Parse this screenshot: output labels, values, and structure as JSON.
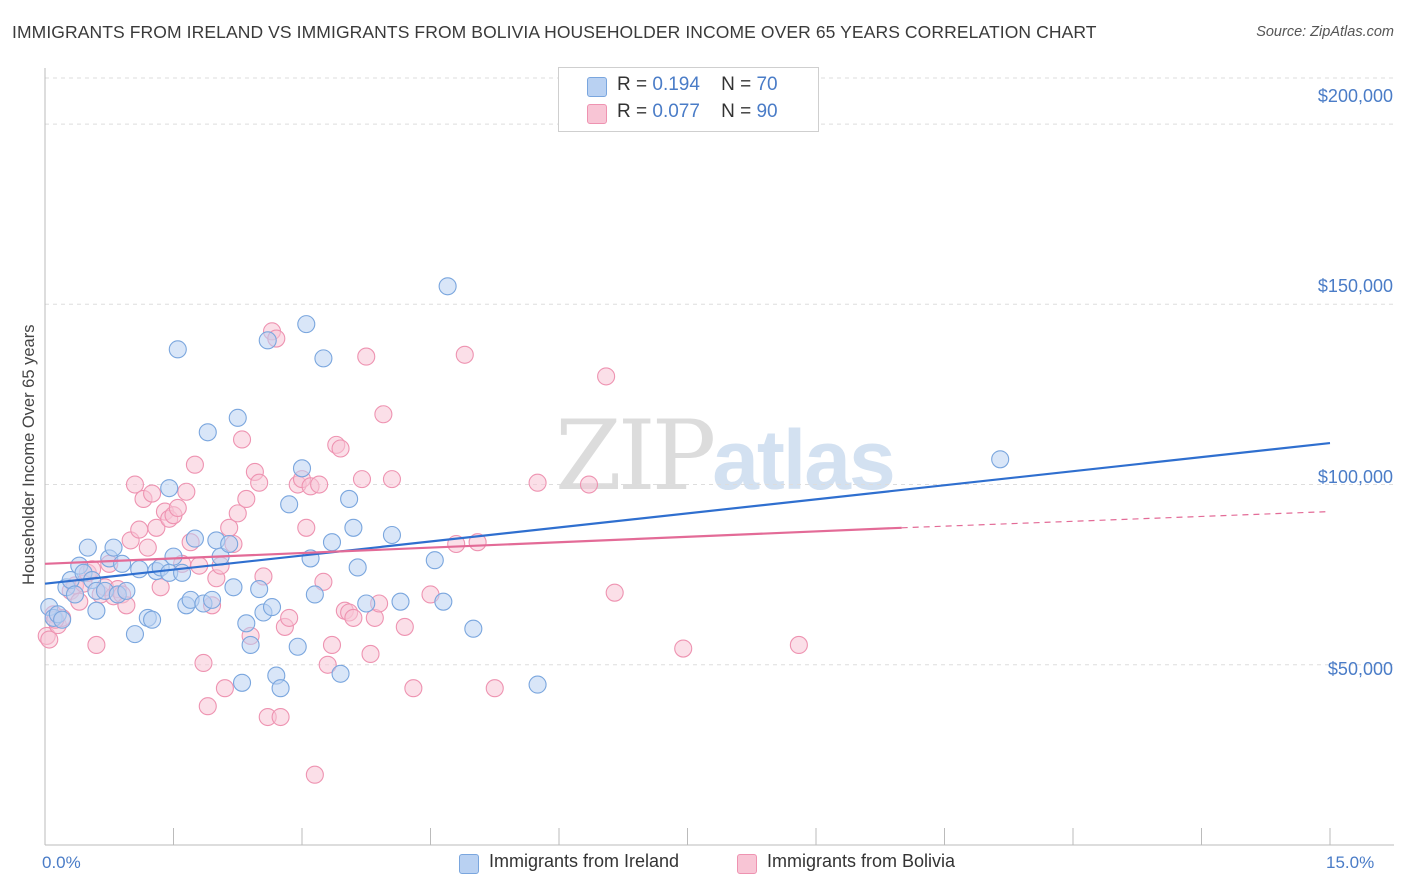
{
  "title": "IMMIGRANTS FROM IRELAND VS IMMIGRANTS FROM BOLIVIA HOUSEHOLDER INCOME OVER 65 YEARS CORRELATION CHART",
  "source": "Source: ZipAtlas.com",
  "watermark": {
    "zip": "ZIP",
    "atlas": "atlas"
  },
  "legend": {
    "rows": [
      {
        "r_label": "R =",
        "r_value": "0.194",
        "n_label": "N =",
        "n_value": "70"
      },
      {
        "r_label": "R =",
        "r_value": "0.077",
        "n_label": "N =",
        "n_value": "90"
      }
    ]
  },
  "colors": {
    "ireland_fill": "#b9d1f2",
    "ireland_stroke": "#7aa6de",
    "ireland_line": "#2f6fcf",
    "bolivia_fill": "#f8c5d5",
    "bolivia_stroke": "#ee93b1",
    "bolivia_line": "#e36b97",
    "tick_text": "#4a7cc7",
    "grid": "#dddddd"
  },
  "chart_data": {
    "type": "scatter",
    "title": "IMMIGRANTS FROM IRELAND VS IMMIGRANTS FROM BOLIVIA HOUSEHOLDER INCOME OVER 65 YEARS CORRELATION CHART",
    "xlabel": "",
    "ylabel": "Householder Income Over 65 years",
    "xlim": [
      0,
      15
    ],
    "ylim": [
      0,
      215000
    ],
    "x_tick_labels": [
      "0.0%",
      "15.0%"
    ],
    "y_ticks": [
      50000,
      100000,
      150000,
      200000
    ],
    "y_tick_labels": [
      "$50,000",
      "$100,000",
      "$150,000",
      "$200,000"
    ],
    "grid": true,
    "legend_position": "top-center",
    "series": [
      {
        "name": "Immigrants from Ireland",
        "r": 0.194,
        "n": 70,
        "trend": {
          "x0": 0,
          "y0": 72500,
          "x1": 15,
          "y1": 111500
        },
        "points": [
          [
            0.05,
            66000
          ],
          [
            0.1,
            63000
          ],
          [
            0.15,
            64000
          ],
          [
            0.2,
            62500
          ],
          [
            0.25,
            71500
          ],
          [
            0.3,
            73500
          ],
          [
            0.35,
            69500
          ],
          [
            0.4,
            77500
          ],
          [
            0.45,
            75500
          ],
          [
            0.5,
            82500
          ],
          [
            0.55,
            73500
          ],
          [
            0.6,
            70500
          ],
          [
            0.6,
            65000
          ],
          [
            0.7,
            70500
          ],
          [
            0.75,
            79500
          ],
          [
            0.8,
            82500
          ],
          [
            0.85,
            69500
          ],
          [
            0.9,
            78000
          ],
          [
            0.95,
            70500
          ],
          [
            1.05,
            58500
          ],
          [
            1.1,
            76500
          ],
          [
            1.2,
            63000
          ],
          [
            1.25,
            62500
          ],
          [
            1.3,
            76000
          ],
          [
            1.35,
            77000
          ],
          [
            1.45,
            75500
          ],
          [
            1.45,
            99000
          ],
          [
            1.5,
            80000
          ],
          [
            1.55,
            137500
          ],
          [
            1.6,
            75500
          ],
          [
            1.65,
            66500
          ],
          [
            1.7,
            68000
          ],
          [
            1.75,
            85000
          ],
          [
            1.85,
            67000
          ],
          [
            1.9,
            114500
          ],
          [
            1.95,
            68000
          ],
          [
            2.0,
            84500
          ],
          [
            2.05,
            80000
          ],
          [
            2.15,
            83500
          ],
          [
            2.2,
            71500
          ],
          [
            2.25,
            118500
          ],
          [
            2.3,
            45000
          ],
          [
            2.35,
            61500
          ],
          [
            2.4,
            55500
          ],
          [
            2.5,
            71000
          ],
          [
            2.55,
            64500
          ],
          [
            2.6,
            140000
          ],
          [
            2.65,
            66000
          ],
          [
            2.7,
            47000
          ],
          [
            2.75,
            43500
          ],
          [
            2.85,
            94500
          ],
          [
            2.95,
            55000
          ],
          [
            3.0,
            104500
          ],
          [
            3.05,
            144500
          ],
          [
            3.1,
            79500
          ],
          [
            3.15,
            69500
          ],
          [
            3.25,
            135000
          ],
          [
            3.35,
            84000
          ],
          [
            3.45,
            47500
          ],
          [
            3.55,
            96000
          ],
          [
            3.6,
            88000
          ],
          [
            3.65,
            77000
          ],
          [
            3.75,
            67000
          ],
          [
            4.05,
            86000
          ],
          [
            4.15,
            67500
          ],
          [
            4.55,
            79000
          ],
          [
            4.65,
            67500
          ],
          [
            4.7,
            155000
          ],
          [
            5.0,
            60000
          ],
          [
            5.75,
            44500
          ],
          [
            11.15,
            107000
          ]
        ]
      },
      {
        "name": "Immigrants from Bolivia",
        "r": 0.077,
        "n": 90,
        "trend": {
          "x0": 0,
          "y0": 78000,
          "x1": 10,
          "y1": 88000
        },
        "trend_dashed": {
          "x0": 10,
          "y0": 88000,
          "x1": 15,
          "y1": 92500
        },
        "points": [
          [
            0.02,
            58000
          ],
          [
            0.05,
            57000
          ],
          [
            0.1,
            64000
          ],
          [
            0.15,
            61000
          ],
          [
            0.2,
            63000
          ],
          [
            0.3,
            70500
          ],
          [
            0.35,
            72000
          ],
          [
            0.4,
            67500
          ],
          [
            0.45,
            72500
          ],
          [
            0.5,
            75500
          ],
          [
            0.55,
            76500
          ],
          [
            0.6,
            55500
          ],
          [
            0.65,
            69500
          ],
          [
            0.7,
            71500
          ],
          [
            0.75,
            78000
          ],
          [
            0.8,
            69000
          ],
          [
            0.85,
            71000
          ],
          [
            0.9,
            69500
          ],
          [
            0.95,
            66500
          ],
          [
            1.0,
            84500
          ],
          [
            1.05,
            100000
          ],
          [
            1.1,
            87500
          ],
          [
            1.15,
            96000
          ],
          [
            1.2,
            82500
          ],
          [
            1.25,
            97500
          ],
          [
            1.3,
            88000
          ],
          [
            1.35,
            71500
          ],
          [
            1.4,
            92500
          ],
          [
            1.45,
            90500
          ],
          [
            1.5,
            91500
          ],
          [
            1.55,
            93500
          ],
          [
            1.6,
            78000
          ],
          [
            1.65,
            98000
          ],
          [
            1.7,
            84000
          ],
          [
            1.75,
            105500
          ],
          [
            1.8,
            77500
          ],
          [
            1.85,
            50500
          ],
          [
            1.9,
            38500
          ],
          [
            1.95,
            66500
          ],
          [
            2.0,
            74000
          ],
          [
            2.05,
            77500
          ],
          [
            2.1,
            43500
          ],
          [
            2.15,
            88000
          ],
          [
            2.2,
            83500
          ],
          [
            2.25,
            92000
          ],
          [
            2.3,
            112500
          ],
          [
            2.35,
            96000
          ],
          [
            2.4,
            58000
          ],
          [
            2.45,
            103500
          ],
          [
            2.5,
            100500
          ],
          [
            2.55,
            74500
          ],
          [
            2.6,
            35500
          ],
          [
            2.65,
            142500
          ],
          [
            2.7,
            140500
          ],
          [
            2.75,
            35500
          ],
          [
            2.8,
            60500
          ],
          [
            2.85,
            63000
          ],
          [
            2.95,
            100000
          ],
          [
            3.0,
            101500
          ],
          [
            3.05,
            88000
          ],
          [
            3.1,
            99500
          ],
          [
            3.15,
            19500
          ],
          [
            3.2,
            100000
          ],
          [
            3.25,
            73000
          ],
          [
            3.3,
            50000
          ],
          [
            3.35,
            55500
          ],
          [
            3.4,
            111000
          ],
          [
            3.45,
            110000
          ],
          [
            3.5,
            65000
          ],
          [
            3.55,
            64500
          ],
          [
            3.6,
            63000
          ],
          [
            3.7,
            101500
          ],
          [
            3.75,
            135500
          ],
          [
            3.8,
            53000
          ],
          [
            3.85,
            63000
          ],
          [
            3.9,
            67000
          ],
          [
            3.95,
            119500
          ],
          [
            4.05,
            101500
          ],
          [
            4.2,
            60500
          ],
          [
            4.3,
            43500
          ],
          [
            4.5,
            69500
          ],
          [
            4.8,
            83500
          ],
          [
            4.9,
            136000
          ],
          [
            5.25,
            43500
          ],
          [
            5.75,
            100500
          ],
          [
            6.35,
            100000
          ],
          [
            6.55,
            130000
          ],
          [
            6.65,
            70000
          ],
          [
            7.45,
            54500
          ],
          [
            8.8,
            55500
          ],
          [
            5.05,
            84000
          ],
          [
            0.12,
            62500
          ]
        ]
      }
    ]
  },
  "bottom_legend": [
    "Immigrants from Ireland",
    "Immigrants from Bolivia"
  ]
}
